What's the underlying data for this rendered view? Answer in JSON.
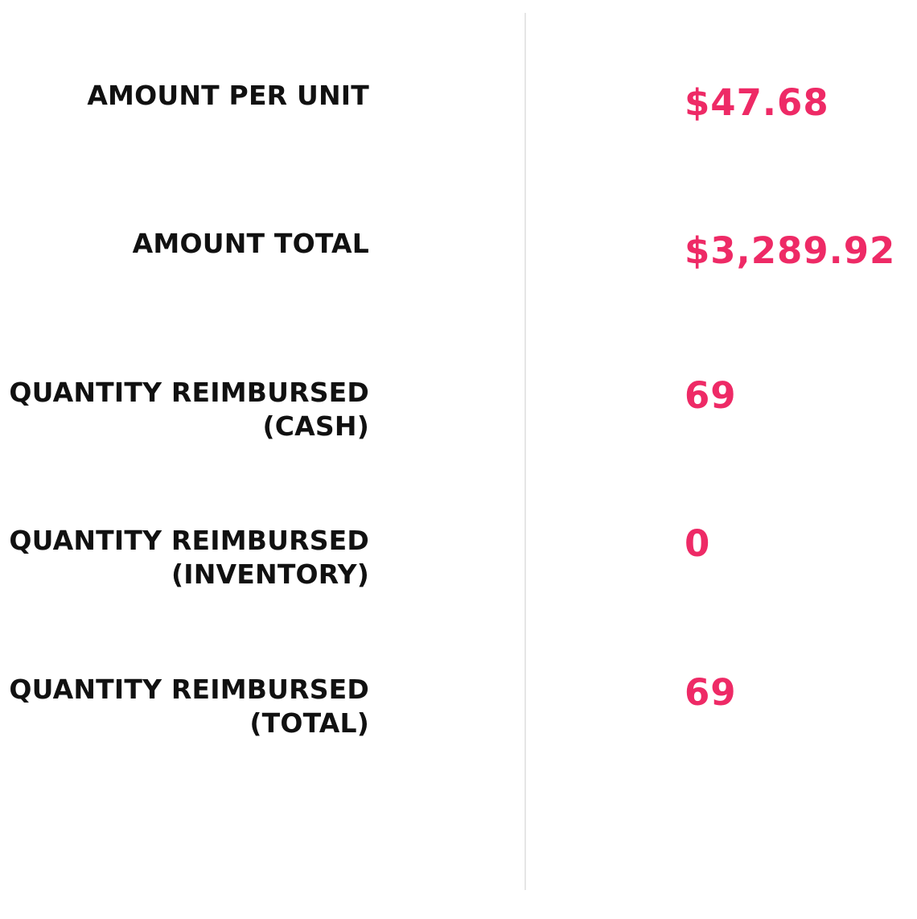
{
  "colors": {
    "label": "#111111",
    "value": "#ee2a66",
    "divider": "#e6e6e6",
    "background": "#ffffff"
  },
  "rows": [
    {
      "label_lines": [
        "AMOUNT PER UNIT"
      ],
      "value": "$47.68"
    },
    {
      "label_lines": [
        "AMOUNT TOTAL"
      ],
      "value": "$3,289.92"
    },
    {
      "label_lines": [
        "QUANTITY REIMBURSED",
        "(CASH)"
      ],
      "value": "69"
    },
    {
      "label_lines": [
        "QUANTITY REIMBURSED",
        "(INVENTORY)"
      ],
      "value": "0"
    },
    {
      "label_lines": [
        "QUANTITY REIMBURSED",
        "(TOTAL)"
      ],
      "value": "69"
    }
  ]
}
